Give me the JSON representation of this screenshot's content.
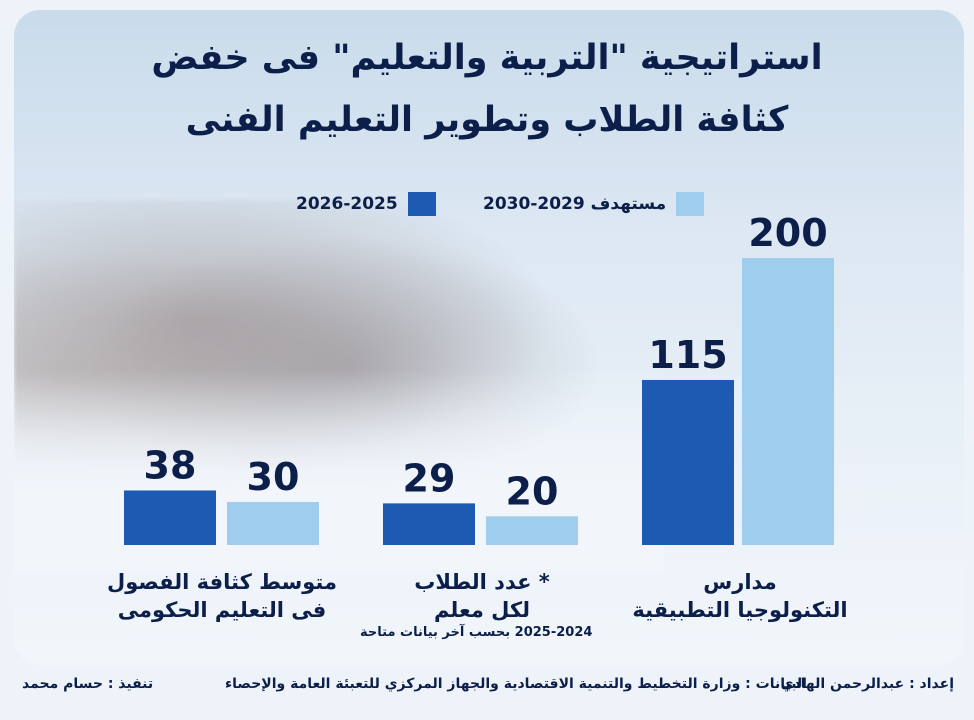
{
  "title_line1": "استراتيجية \"التربية والتعليم\" فى خفض",
  "title_line2": "كثافة الطلاب وتطوير التعليم الفنى",
  "colors": {
    "current": "#1c5bb1",
    "target": "#9fcdee",
    "text": "#0c1f4a"
  },
  "chart_data": {
    "type": "bar",
    "categories": [
      "مدارس التكنولوجيا التطبيقية",
      "* عدد الطلاب لكل معلم",
      "متوسط كثافة الفصول فى التعليم الحكومى"
    ],
    "series": [
      {
        "name": "2026-2025",
        "values": [
          115,
          29,
          38
        ]
      },
      {
        "name": "مستهدف 2029-2030",
        "values": [
          200,
          20,
          30
        ]
      }
    ],
    "legend_position": "top"
  },
  "labels": {
    "cat1_line1": "مدارس",
    "cat1_line2": "التكنولوجيا التطبيقية",
    "cat2_line1": "* عدد الطلاب",
    "cat2_line2": "لكل معلم",
    "cat2_note": "2025-2024 بحسب آخر بيانات متاحة",
    "cat3_line1": "متوسط كثافة الفصول",
    "cat3_line2": "فى التعليم الحكومى"
  },
  "footer": {
    "author": "إعداد : عبدالرحمن الهادي",
    "source": "البيانات : وزارة التخطيط والتنمية الاقتصادية والجهاز المركزي للتعبئة العامة والإحصاء",
    "design": "تنفيذ : حسام محمد"
  }
}
